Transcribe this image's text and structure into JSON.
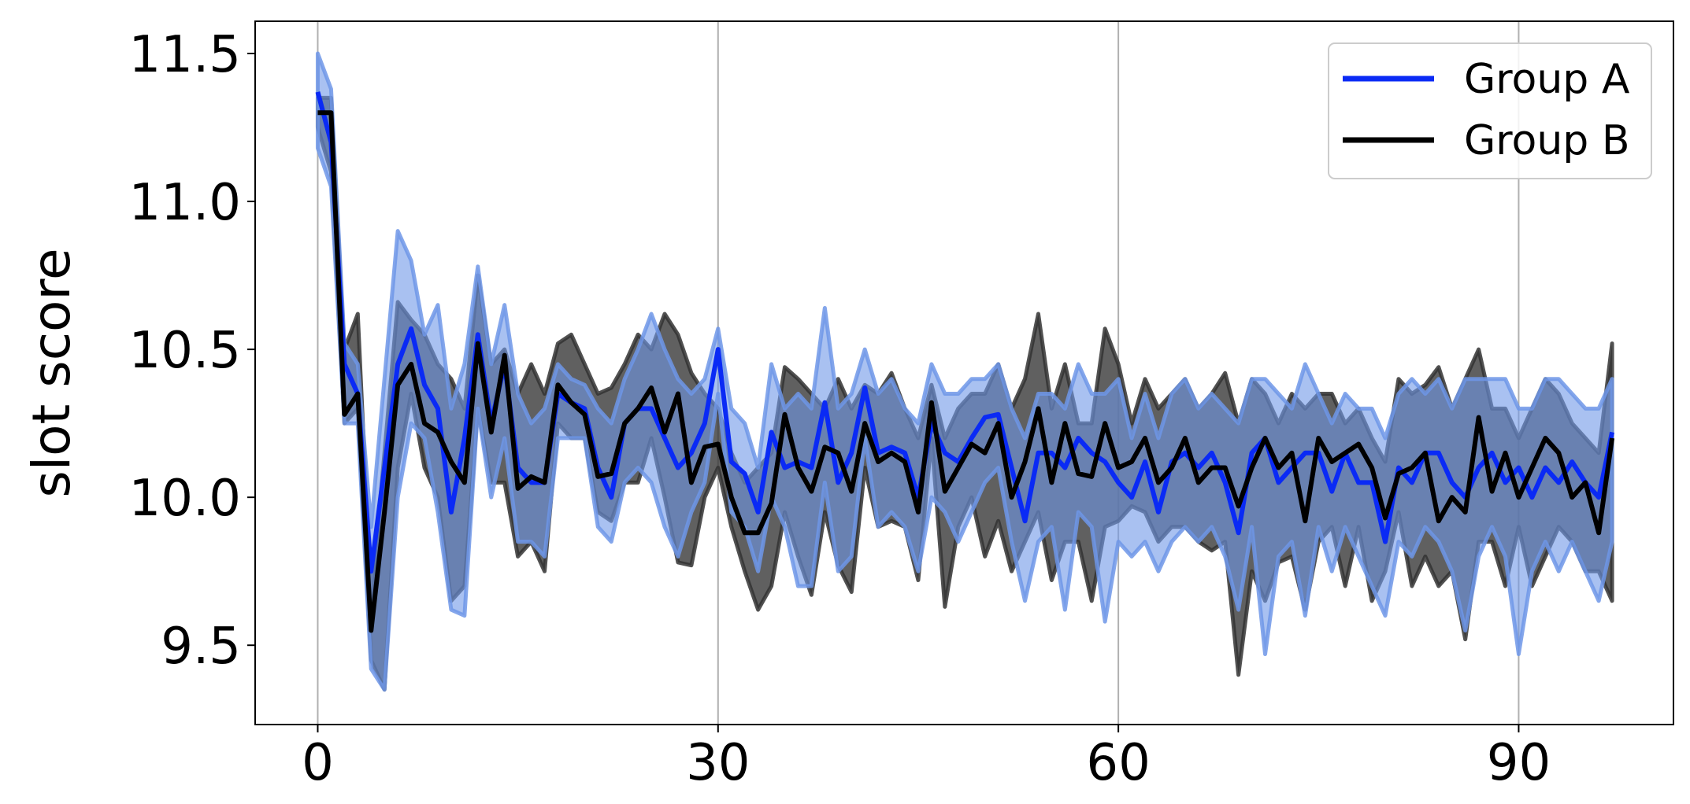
{
  "chart_data": {
    "type": "line",
    "ylabel": "slot score",
    "xlim": [
      -4.69,
      101.6
    ],
    "ylim": [
      9.232,
      11.609
    ],
    "xticks": [
      0,
      30,
      60,
      90
    ],
    "yticks": [
      9.5,
      {
        "value": 10,
        "label": "10.0"
      },
      10.5,
      {
        "value": 11,
        "label": "11.0"
      },
      11.5
    ],
    "grid": "x",
    "legend": "upper right",
    "x": [
      0,
      1,
      2,
      3,
      4,
      5,
      6,
      7,
      8,
      9,
      10,
      11,
      12,
      13,
      14,
      15,
      16,
      17,
      18,
      19,
      20,
      21,
      22,
      23,
      24,
      25,
      26,
      27,
      28,
      29,
      30,
      31,
      32,
      33,
      34,
      35,
      36,
      37,
      38,
      39,
      40,
      41,
      42,
      43,
      44,
      45,
      46,
      47,
      48,
      49,
      50,
      51,
      52,
      53,
      54,
      55,
      56,
      57,
      58,
      59,
      60,
      61,
      62,
      63,
      64,
      65,
      66,
      67,
      68,
      69,
      70,
      71,
      72,
      73,
      74,
      75,
      76,
      77,
      78,
      79,
      80,
      81,
      82,
      83,
      84,
      85,
      86,
      87,
      88,
      89,
      90,
      91,
      92,
      93,
      94,
      95,
      96,
      97
    ],
    "series": [
      {
        "name": "Group A",
        "color": "#0a2af5",
        "band_color": "#6f97e8",
        "values": [
          11.37,
          11.2,
          10.45,
          10.35,
          9.75,
          10.1,
          10.45,
          10.57,
          10.38,
          10.3,
          9.95,
          10.2,
          10.55,
          10.25,
          10.45,
          10.1,
          10.05,
          10.05,
          10.35,
          10.32,
          10.3,
          10.1,
          10.0,
          10.25,
          10.3,
          10.3,
          10.2,
          10.1,
          10.15,
          10.25,
          10.5,
          10.12,
          10.08,
          9.95,
          10.22,
          10.1,
          10.12,
          10.1,
          10.32,
          10.05,
          10.15,
          10.37,
          10.15,
          10.17,
          10.15,
          10.0,
          10.25,
          10.15,
          10.12,
          10.2,
          10.27,
          10.28,
          10.1,
          9.92,
          10.15,
          10.15,
          10.1,
          10.2,
          10.15,
          10.12,
          10.05,
          10.0,
          10.12,
          9.95,
          10.12,
          10.15,
          10.1,
          10.15,
          10.05,
          9.88,
          10.15,
          10.2,
          10.05,
          10.1,
          10.15,
          10.15,
          10.02,
          10.15,
          10.05,
          10.05,
          9.85,
          10.1,
          10.05,
          10.15,
          10.15,
          10.05,
          10.0,
          10.1,
          10.15,
          10.05,
          10.1,
          10.0,
          10.1,
          10.05,
          10.12,
          10.05,
          10.0,
          10.22
        ],
        "upper": [
          11.5,
          11.38,
          10.52,
          10.45,
          9.9,
          10.4,
          10.9,
          10.8,
          10.55,
          10.65,
          10.3,
          10.45,
          10.78,
          10.45,
          10.65,
          10.35,
          10.25,
          10.3,
          10.45,
          10.4,
          10.38,
          10.3,
          10.25,
          10.4,
          10.5,
          10.62,
          10.5,
          10.4,
          10.35,
          10.4,
          10.57,
          10.3,
          10.25,
          10.1,
          10.45,
          10.3,
          10.35,
          10.3,
          10.64,
          10.3,
          10.35,
          10.5,
          10.35,
          10.4,
          10.3,
          10.25,
          10.45,
          10.35,
          10.35,
          10.4,
          10.4,
          10.45,
          10.3,
          10.2,
          10.35,
          10.35,
          10.3,
          10.45,
          10.35,
          10.35,
          10.4,
          10.2,
          10.35,
          10.2,
          10.35,
          10.4,
          10.3,
          10.35,
          10.3,
          10.25,
          10.4,
          10.4,
          10.35,
          10.3,
          10.45,
          10.35,
          10.25,
          10.35,
          10.3,
          10.3,
          10.2,
          10.35,
          10.4,
          10.35,
          10.4,
          10.3,
          10.4,
          10.4,
          10.4,
          10.4,
          10.3,
          10.3,
          10.4,
          10.4,
          10.35,
          10.3,
          10.3,
          10.4
        ],
        "lower": [
          11.18,
          11.05,
          10.25,
          10.25,
          9.42,
          9.35,
          10.0,
          10.25,
          10.2,
          9.95,
          9.62,
          9.6,
          10.3,
          10.0,
          10.2,
          9.85,
          9.85,
          9.8,
          10.2,
          10.2,
          10.2,
          9.9,
          9.85,
          10.05,
          10.1,
          10.05,
          9.9,
          9.8,
          9.95,
          10.05,
          10.35,
          9.95,
          9.9,
          9.75,
          10.0,
          9.9,
          9.7,
          9.7,
          10.05,
          9.75,
          9.8,
          10.2,
          9.9,
          9.95,
          9.9,
          9.75,
          10.0,
          9.95,
          9.85,
          9.95,
          10.05,
          10.1,
          9.85,
          9.65,
          9.85,
          9.9,
          9.62,
          9.95,
          9.9,
          9.58,
          9.85,
          9.8,
          9.85,
          9.75,
          9.85,
          9.9,
          9.85,
          9.9,
          9.8,
          9.62,
          9.9,
          9.47,
          9.8,
          9.85,
          9.6,
          9.9,
          9.75,
          9.9,
          9.8,
          9.7,
          9.6,
          9.85,
          9.8,
          9.9,
          9.85,
          9.75,
          9.55,
          9.8,
          9.9,
          9.8,
          9.47,
          9.75,
          9.85,
          9.75,
          9.85,
          9.75,
          9.65,
          9.85
        ]
      },
      {
        "name": "Group B",
        "color": "#000000",
        "band_color": "#333333",
        "values": [
          11.3,
          11.3,
          10.28,
          10.35,
          9.55,
          9.95,
          10.38,
          10.45,
          10.25,
          10.22,
          10.12,
          10.05,
          10.52,
          10.22,
          10.48,
          10.03,
          10.07,
          10.05,
          10.38,
          10.32,
          10.28,
          10.07,
          10.08,
          10.25,
          10.3,
          10.37,
          10.22,
          10.35,
          10.05,
          10.17,
          10.18,
          10.0,
          9.88,
          9.88,
          9.98,
          10.28,
          10.1,
          10.02,
          10.17,
          10.15,
          10.02,
          10.25,
          10.12,
          10.15,
          10.12,
          9.95,
          10.32,
          10.02,
          10.1,
          10.18,
          10.15,
          10.25,
          10.0,
          10.12,
          10.3,
          10.05,
          10.25,
          10.08,
          10.07,
          10.25,
          10.1,
          10.12,
          10.2,
          10.05,
          10.1,
          10.2,
          10.05,
          10.1,
          10.1,
          9.97,
          10.1,
          10.2,
          10.1,
          10.15,
          9.92,
          10.2,
          10.12,
          10.15,
          10.18,
          10.1,
          9.93,
          10.08,
          10.1,
          10.15,
          9.92,
          10.0,
          9.95,
          10.27,
          10.02,
          10.15,
          10.0,
          10.1,
          10.2,
          10.15,
          10.0,
          10.05,
          9.88,
          10.2
        ],
        "upper": [
          11.35,
          11.35,
          10.5,
          10.62,
          9.65,
          10.15,
          10.66,
          10.6,
          10.55,
          10.45,
          10.4,
          10.3,
          10.75,
          10.45,
          10.5,
          10.35,
          10.45,
          10.35,
          10.52,
          10.55,
          10.45,
          10.35,
          10.37,
          10.45,
          10.55,
          10.5,
          10.62,
          10.55,
          10.42,
          10.35,
          10.3,
          10.15,
          10.05,
          10.1,
          10.15,
          10.44,
          10.4,
          10.35,
          10.3,
          10.4,
          10.3,
          10.38,
          10.35,
          10.42,
          10.3,
          10.2,
          10.38,
          10.2,
          10.3,
          10.35,
          10.35,
          10.45,
          10.3,
          10.4,
          10.62,
          10.3,
          10.45,
          10.25,
          10.25,
          10.57,
          10.45,
          10.25,
          10.4,
          10.3,
          10.35,
          10.4,
          10.3,
          10.35,
          10.42,
          10.25,
          10.4,
          10.35,
          10.25,
          10.35,
          10.3,
          10.35,
          10.35,
          10.25,
          10.3,
          10.2,
          10.12,
          10.4,
          10.35,
          10.38,
          10.44,
          10.3,
          10.4,
          10.5,
          10.3,
          10.3,
          10.2,
          10.3,
          10.4,
          10.35,
          10.25,
          10.2,
          10.15,
          10.52
        ],
        "lower": [
          11.25,
          11.1,
          10.25,
          10.3,
          9.45,
          9.35,
          10.1,
          10.35,
          10.1,
          10.0,
          9.65,
          9.7,
          10.3,
          10.05,
          10.05,
          9.8,
          9.85,
          9.75,
          10.25,
          10.2,
          10.2,
          9.95,
          9.92,
          10.05,
          10.05,
          10.2,
          10.0,
          9.78,
          9.77,
          10.0,
          10.1,
          9.9,
          9.75,
          9.62,
          9.7,
          9.95,
          9.8,
          9.67,
          9.95,
          9.77,
          9.68,
          10.1,
          9.9,
          9.92,
          9.9,
          9.72,
          10.2,
          9.63,
          9.9,
          10.0,
          9.8,
          9.92,
          9.75,
          9.85,
          9.95,
          9.72,
          9.85,
          9.85,
          9.65,
          9.9,
          9.92,
          9.97,
          9.95,
          9.85,
          9.9,
          9.9,
          9.85,
          9.82,
          9.85,
          9.4,
          9.75,
          9.65,
          9.78,
          9.8,
          9.62,
          9.85,
          9.9,
          9.7,
          9.9,
          9.65,
          9.75,
          9.95,
          9.7,
          9.8,
          9.7,
          9.75,
          9.52,
          9.85,
          9.85,
          9.7,
          9.9,
          9.7,
          9.8,
          9.9,
          9.85,
          9.75,
          9.75,
          9.65
        ]
      }
    ]
  }
}
